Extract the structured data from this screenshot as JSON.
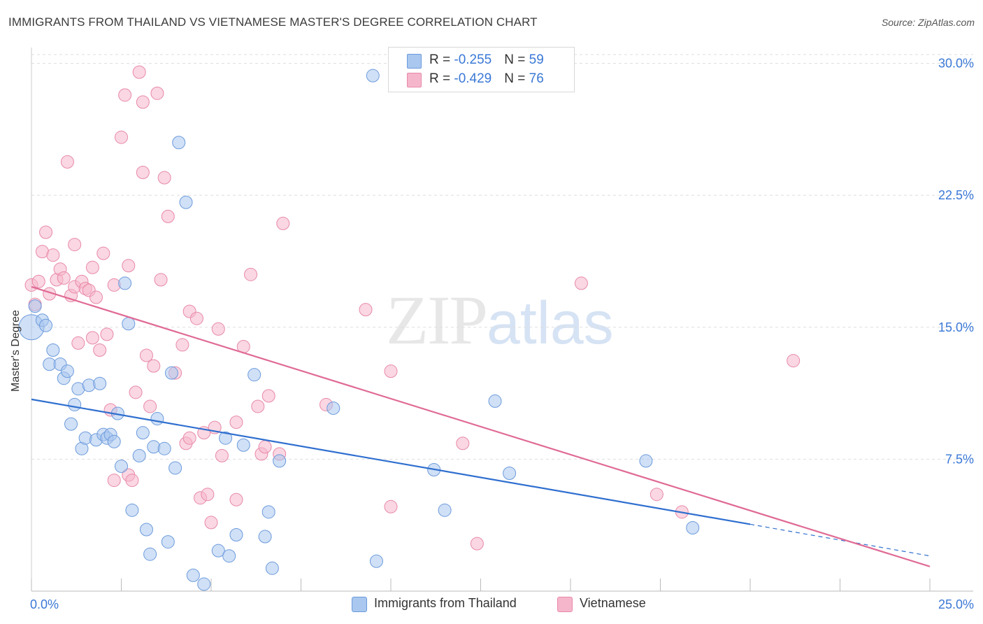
{
  "header": {
    "title": "IMMIGRANTS FROM THAILAND VS VIETNAMESE MASTER'S DEGREE CORRELATION CHART",
    "source": "Source: ZipAtlas.com"
  },
  "watermark": {
    "zip": "ZIP",
    "atlas": "atlas"
  },
  "legend": {
    "thailand": {
      "r_label": "R = ",
      "r_value": "-0.255",
      "n_label": "N = ",
      "n_value": "59"
    },
    "vietnamese": {
      "r_label": "R = ",
      "r_value": "-0.429",
      "n_label": "N = ",
      "n_value": "76"
    }
  },
  "bottom_legend": {
    "thailand": "Immigrants from Thailand",
    "vietnamese": "Vietnamese"
  },
  "colors": {
    "blue_fill": "#a9c7ef",
    "blue_stroke": "#6c9bdc",
    "blue_line": "#2f6fcf",
    "pink_fill": "#f5b6cb",
    "pink_stroke": "#e889a8",
    "pink_line": "#e06a95",
    "tick_text": "#3a78d6"
  },
  "chart_data": {
    "type": "scatter",
    "title": "IMMIGRANTS FROM THAILAND VS VIETNAMESE MASTER'S DEGREE CORRELATION CHART",
    "xlabel": "",
    "ylabel": "Master's Degree",
    "xlim": [
      0,
      25
    ],
    "ylim": [
      0,
      30.5
    ],
    "x_tick_labels": [
      "0.0%",
      "25.0%"
    ],
    "y_ticks": [
      7.5,
      15.0,
      22.5,
      30.0
    ],
    "y_tick_labels": [
      "7.5%",
      "15.0%",
      "22.5%",
      "30.0%"
    ],
    "grid": true,
    "legend_position": "top-center",
    "series": [
      {
        "name": "Immigrants from Thailand",
        "color": "#a9c7ef",
        "trend": {
          "x": [
            0,
            20
          ],
          "y": [
            10.9,
            3.8
          ],
          "dashed_to": [
            25,
            2.0
          ]
        },
        "points": [
          [
            0.0,
            15.0
          ],
          [
            0.1,
            16.2
          ],
          [
            0.3,
            15.4
          ],
          [
            0.4,
            15.1
          ],
          [
            0.5,
            12.9
          ],
          [
            0.6,
            13.7
          ],
          [
            0.8,
            12.9
          ],
          [
            0.9,
            12.1
          ],
          [
            1.0,
            12.5
          ],
          [
            1.1,
            9.5
          ],
          [
            1.2,
            10.6
          ],
          [
            1.3,
            11.5
          ],
          [
            1.4,
            8.1
          ],
          [
            1.5,
            8.7
          ],
          [
            1.6,
            11.7
          ],
          [
            1.8,
            8.6
          ],
          [
            1.9,
            11.8
          ],
          [
            2.0,
            8.9
          ],
          [
            2.1,
            8.7
          ],
          [
            2.2,
            8.9
          ],
          [
            2.3,
            8.5
          ],
          [
            2.4,
            10.1
          ],
          [
            2.5,
            7.1
          ],
          [
            2.6,
            17.5
          ],
          [
            2.7,
            15.2
          ],
          [
            2.8,
            4.6
          ],
          [
            3.0,
            7.7
          ],
          [
            3.1,
            9.0
          ],
          [
            3.2,
            3.5
          ],
          [
            3.3,
            2.1
          ],
          [
            3.4,
            8.2
          ],
          [
            3.5,
            9.8
          ],
          [
            3.7,
            8.1
          ],
          [
            3.8,
            2.8
          ],
          [
            3.9,
            12.4
          ],
          [
            4.0,
            7.0
          ],
          [
            4.1,
            25.5
          ],
          [
            4.3,
            22.1
          ],
          [
            4.5,
            0.9
          ],
          [
            4.8,
            0.4
          ],
          [
            5.2,
            2.3
          ],
          [
            5.4,
            8.7
          ],
          [
            5.5,
            2.0
          ],
          [
            5.7,
            3.2
          ],
          [
            5.9,
            8.3
          ],
          [
            6.2,
            12.3
          ],
          [
            6.5,
            3.1
          ],
          [
            6.6,
            4.5
          ],
          [
            6.7,
            1.3
          ],
          [
            6.9,
            7.4
          ],
          [
            8.4,
            10.4
          ],
          [
            9.5,
            29.3
          ],
          [
            9.6,
            1.7
          ],
          [
            11.2,
            6.9
          ],
          [
            11.5,
            4.6
          ],
          [
            12.9,
            10.8
          ],
          [
            13.3,
            6.7
          ],
          [
            17.1,
            7.4
          ],
          [
            18.4,
            3.6
          ]
        ]
      },
      {
        "name": "Vietnamese",
        "color": "#f5b6cb",
        "trend": {
          "x": [
            0,
            25
          ],
          "y": [
            17.3,
            1.4
          ]
        },
        "points": [
          [
            0.0,
            17.4
          ],
          [
            0.1,
            16.3
          ],
          [
            0.2,
            17.6
          ],
          [
            0.3,
            19.3
          ],
          [
            0.4,
            20.4
          ],
          [
            0.5,
            16.9
          ],
          [
            0.6,
            19.1
          ],
          [
            0.7,
            17.7
          ],
          [
            0.8,
            18.3
          ],
          [
            0.9,
            17.8
          ],
          [
            1.0,
            24.4
          ],
          [
            1.1,
            16.8
          ],
          [
            1.2,
            17.3
          ],
          [
            1.2,
            19.7
          ],
          [
            1.3,
            14.1
          ],
          [
            1.4,
            17.6
          ],
          [
            1.5,
            17.2
          ],
          [
            1.6,
            17.1
          ],
          [
            1.7,
            18.4
          ],
          [
            1.7,
            14.4
          ],
          [
            1.8,
            16.7
          ],
          [
            1.9,
            13.7
          ],
          [
            2.0,
            19.2
          ],
          [
            2.1,
            14.6
          ],
          [
            2.2,
            10.3
          ],
          [
            2.3,
            17.4
          ],
          [
            2.3,
            6.3
          ],
          [
            2.5,
            25.8
          ],
          [
            2.6,
            28.2
          ],
          [
            2.7,
            6.6
          ],
          [
            2.7,
            18.5
          ],
          [
            2.8,
            6.3
          ],
          [
            2.9,
            11.3
          ],
          [
            3.0,
            29.5
          ],
          [
            3.1,
            27.8
          ],
          [
            3.1,
            23.8
          ],
          [
            3.2,
            13.4
          ],
          [
            3.3,
            10.5
          ],
          [
            3.4,
            12.8
          ],
          [
            3.5,
            28.3
          ],
          [
            3.6,
            17.7
          ],
          [
            3.7,
            23.5
          ],
          [
            3.8,
            21.3
          ],
          [
            4.0,
            12.4
          ],
          [
            4.2,
            14.0
          ],
          [
            4.3,
            8.4
          ],
          [
            4.4,
            15.9
          ],
          [
            4.4,
            8.7
          ],
          [
            4.6,
            15.5
          ],
          [
            4.7,
            5.3
          ],
          [
            4.8,
            9.0
          ],
          [
            4.9,
            5.5
          ],
          [
            5.0,
            3.9
          ],
          [
            5.1,
            9.3
          ],
          [
            5.2,
            14.9
          ],
          [
            5.3,
            7.7
          ],
          [
            5.7,
            5.2
          ],
          [
            5.7,
            9.6
          ],
          [
            5.9,
            13.9
          ],
          [
            6.1,
            18.0
          ],
          [
            6.3,
            10.5
          ],
          [
            6.4,
            7.8
          ],
          [
            6.5,
            8.2
          ],
          [
            6.6,
            11.1
          ],
          [
            6.9,
            7.8
          ],
          [
            7.0,
            20.9
          ],
          [
            8.2,
            10.6
          ],
          [
            9.3,
            16.0
          ],
          [
            10.0,
            12.5
          ],
          [
            10.0,
            4.8
          ],
          [
            12.0,
            8.4
          ],
          [
            12.4,
            2.7
          ],
          [
            15.3,
            17.5
          ],
          [
            17.4,
            5.5
          ],
          [
            18.1,
            4.5
          ],
          [
            21.2,
            13.1
          ]
        ]
      }
    ]
  }
}
